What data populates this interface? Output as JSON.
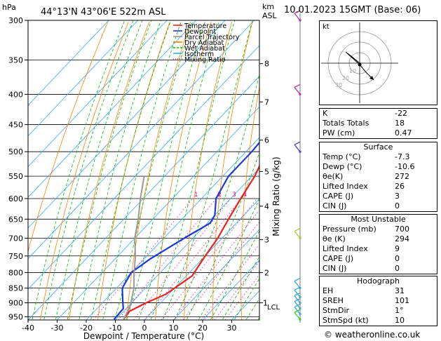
{
  "header": {
    "station": "44°13'N  43°06'E  522m  ASL",
    "datetime": "10.01.2023  15GMT  (Base: 06)",
    "y_axis_unit": "hPa",
    "km_label": "km",
    "asl_label": "ASL"
  },
  "legend": [
    {
      "label": "Temperature",
      "color": "#ee2222"
    },
    {
      "label": "Dewpoint",
      "color": "#1a3cd6"
    },
    {
      "label": "Parcel Trajectory",
      "color": "#999999"
    },
    {
      "label": "Dry Adiabat",
      "color": "#ff8000"
    },
    {
      "label": "Wet Adiabat",
      "color": "#00bb00"
    },
    {
      "label": "Isotherm",
      "color": "#33aaff"
    },
    {
      "label": "Mixing Ratio",
      "color": "#ee00aa"
    }
  ],
  "axes": {
    "xlabel": "Dewpoint / Temperature (°C)",
    "x_ticks": [
      "-40",
      "-30",
      "-20",
      "-10",
      "0",
      "10",
      "20",
      "30"
    ],
    "x_values": [
      -40,
      -30,
      -20,
      -10,
      0,
      10,
      20,
      30
    ],
    "pressure_ticks": [
      "300",
      "350",
      "400",
      "450",
      "500",
      "550",
      "600",
      "650",
      "700",
      "750",
      "800",
      "850",
      "900",
      "950"
    ],
    "pressure_values": [
      300,
      350,
      400,
      450,
      500,
      550,
      600,
      650,
      700,
      750,
      800,
      850,
      900,
      950
    ],
    "km_ticks": [
      "8",
      "7",
      "6",
      "5",
      "4",
      "3",
      "2",
      "1"
    ],
    "km_pressures": [
      355,
      412,
      478,
      540,
      618,
      704,
      800,
      900
    ],
    "lcl_label": "LCL",
    "mixing_ratio_label": "Mixing Ratio (g/kg)",
    "mixing_ratio_ticks": [
      "1",
      "2",
      "3",
      "4",
      "6",
      "8",
      "10",
      "15",
      "20",
      "25"
    ],
    "mixing_ratio_values": [
      1,
      2,
      3,
      4,
      6,
      8,
      10,
      15,
      20,
      25
    ]
  },
  "chart_data": {
    "type": "line",
    "title": "",
    "ylabel": "hPa",
    "xlabel": "Dewpoint / Temperature (°C)",
    "xlim": [
      -40,
      35
    ],
    "ylim": [
      960,
      300
    ],
    "series": [
      {
        "name": "Temperature",
        "color": "#ee2222",
        "points": [
          [
            -7.3,
            960
          ],
          [
            -8,
            930
          ],
          [
            -5,
            900
          ],
          [
            -1,
            870
          ],
          [
            2,
            810
          ],
          [
            1,
            780
          ],
          [
            0,
            750
          ],
          [
            -1.5,
            700
          ],
          [
            -4,
            650
          ],
          [
            -6.5,
            600
          ],
          [
            -9,
            550
          ],
          [
            -13,
            500
          ],
          [
            -16.5,
            450
          ],
          [
            -22,
            400
          ],
          [
            -27,
            350
          ],
          [
            -32,
            300
          ]
        ]
      },
      {
        "name": "Dewpoint",
        "color": "#1a3cd6",
        "points": [
          [
            -10.6,
            960
          ],
          [
            -11,
            920
          ],
          [
            -13,
            900
          ],
          [
            -18,
            850
          ],
          [
            -20,
            800
          ],
          [
            -18,
            760
          ],
          [
            -13,
            700
          ],
          [
            -9,
            660
          ],
          [
            -10,
            640
          ],
          [
            -15,
            600
          ],
          [
            -18,
            550
          ],
          [
            -18,
            500
          ],
          [
            -19,
            450
          ],
          [
            -25,
            400
          ],
          [
            -33,
            350
          ],
          [
            -38,
            300
          ]
        ]
      },
      {
        "name": "Parcel Trajectory",
        "color": "#999999",
        "points": [
          [
            -7.3,
            960
          ],
          [
            -9.5,
            910
          ],
          [
            -14,
            850
          ],
          [
            -19,
            800
          ],
          [
            -24,
            750
          ],
          [
            -30,
            700
          ],
          [
            -35,
            650
          ],
          [
            -41,
            600
          ],
          [
            -47,
            550
          ]
        ]
      }
    ]
  },
  "hodograph": {
    "label": "kt",
    "ring_labels": [
      "10",
      "20",
      "30"
    ]
  },
  "indices": [
    {
      "label": "K",
      "value": "-22"
    },
    {
      "label": "Totals Totals",
      "value": "18"
    },
    {
      "label": "PW (cm)",
      "value": "0.47"
    }
  ],
  "surface": {
    "title": "Surface",
    "rows": [
      {
        "label": "Temp (°C)",
        "value": "-7.3"
      },
      {
        "label": "Dewp (°C)",
        "value": "-10.6"
      },
      {
        "label": "θe(K)",
        "value": "272"
      },
      {
        "label": "Lifted Index",
        "value": "26"
      },
      {
        "label": "CAPE (J)",
        "value": "3"
      },
      {
        "label": "CIN (J)",
        "value": "0"
      }
    ]
  },
  "most_unstable": {
    "title": "Most Unstable",
    "rows": [
      {
        "label": "Pressure (mb)",
        "value": "700"
      },
      {
        "label": "θe (K)",
        "value": "294"
      },
      {
        "label": "Lifted Index",
        "value": "9"
      },
      {
        "label": "CAPE (J)",
        "value": "0"
      },
      {
        "label": "CIN (J)",
        "value": "0"
      }
    ]
  },
  "hodograph_stats": {
    "title": "Hodograph",
    "rows": [
      {
        "label": "EH",
        "value": "31"
      },
      {
        "label": "SREH",
        "value": "101"
      },
      {
        "label": "StmDir",
        "value": "1°"
      },
      {
        "label": "StmSpd (kt)",
        "value": "10"
      }
    ]
  },
  "footer": {
    "copyright": "© weatheronline.co.uk"
  }
}
